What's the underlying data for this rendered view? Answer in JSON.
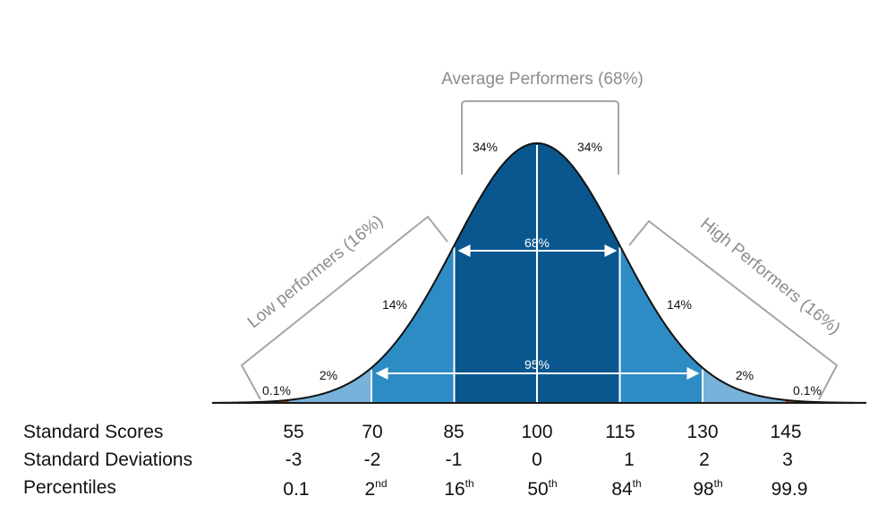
{
  "diagram": {
    "group_labels": {
      "average": "Average Performers (68%)",
      "low": "Low performers (16%)",
      "high": "High Performers (16%)"
    },
    "region_percents": {
      "center_left": "34%",
      "center_right": "34%",
      "mid_left": "14%",
      "mid_right": "14%",
      "outer_left": "2%",
      "outer_right": "2%",
      "tail_left": "0.1%",
      "tail_right": "0.1%"
    },
    "span_labels": {
      "one_sd": "68%",
      "two_sd": "95%"
    },
    "colors": {
      "center": "#0a578f",
      "middle": "#2e8cc4",
      "outer": "#78b1d9",
      "tail": "#c0392b",
      "bracket": "#a6a6a6",
      "group_text": "#8c8c8c"
    }
  },
  "scale_rows": {
    "standard_scores": {
      "label": "Standard Scores",
      "values": [
        "55",
        "70",
        "85",
        "100",
        "115",
        "130",
        "145"
      ]
    },
    "standard_deviations": {
      "label": "Standard Deviations",
      "values": [
        "-3",
        "-2",
        "-1",
        "0",
        "1",
        "2",
        "3"
      ]
    },
    "percentiles": {
      "label": "Percentiles",
      "values": [
        {
          "base": "0.1",
          "suffix": ""
        },
        {
          "base": "2",
          "suffix": "nd"
        },
        {
          "base": "16",
          "suffix": "th"
        },
        {
          "base": "50",
          "suffix": "th"
        },
        {
          "base": "84",
          "suffix": "th"
        },
        {
          "base": "98",
          "suffix": "th"
        },
        {
          "base": "99.9",
          "suffix": ""
        }
      ]
    }
  }
}
